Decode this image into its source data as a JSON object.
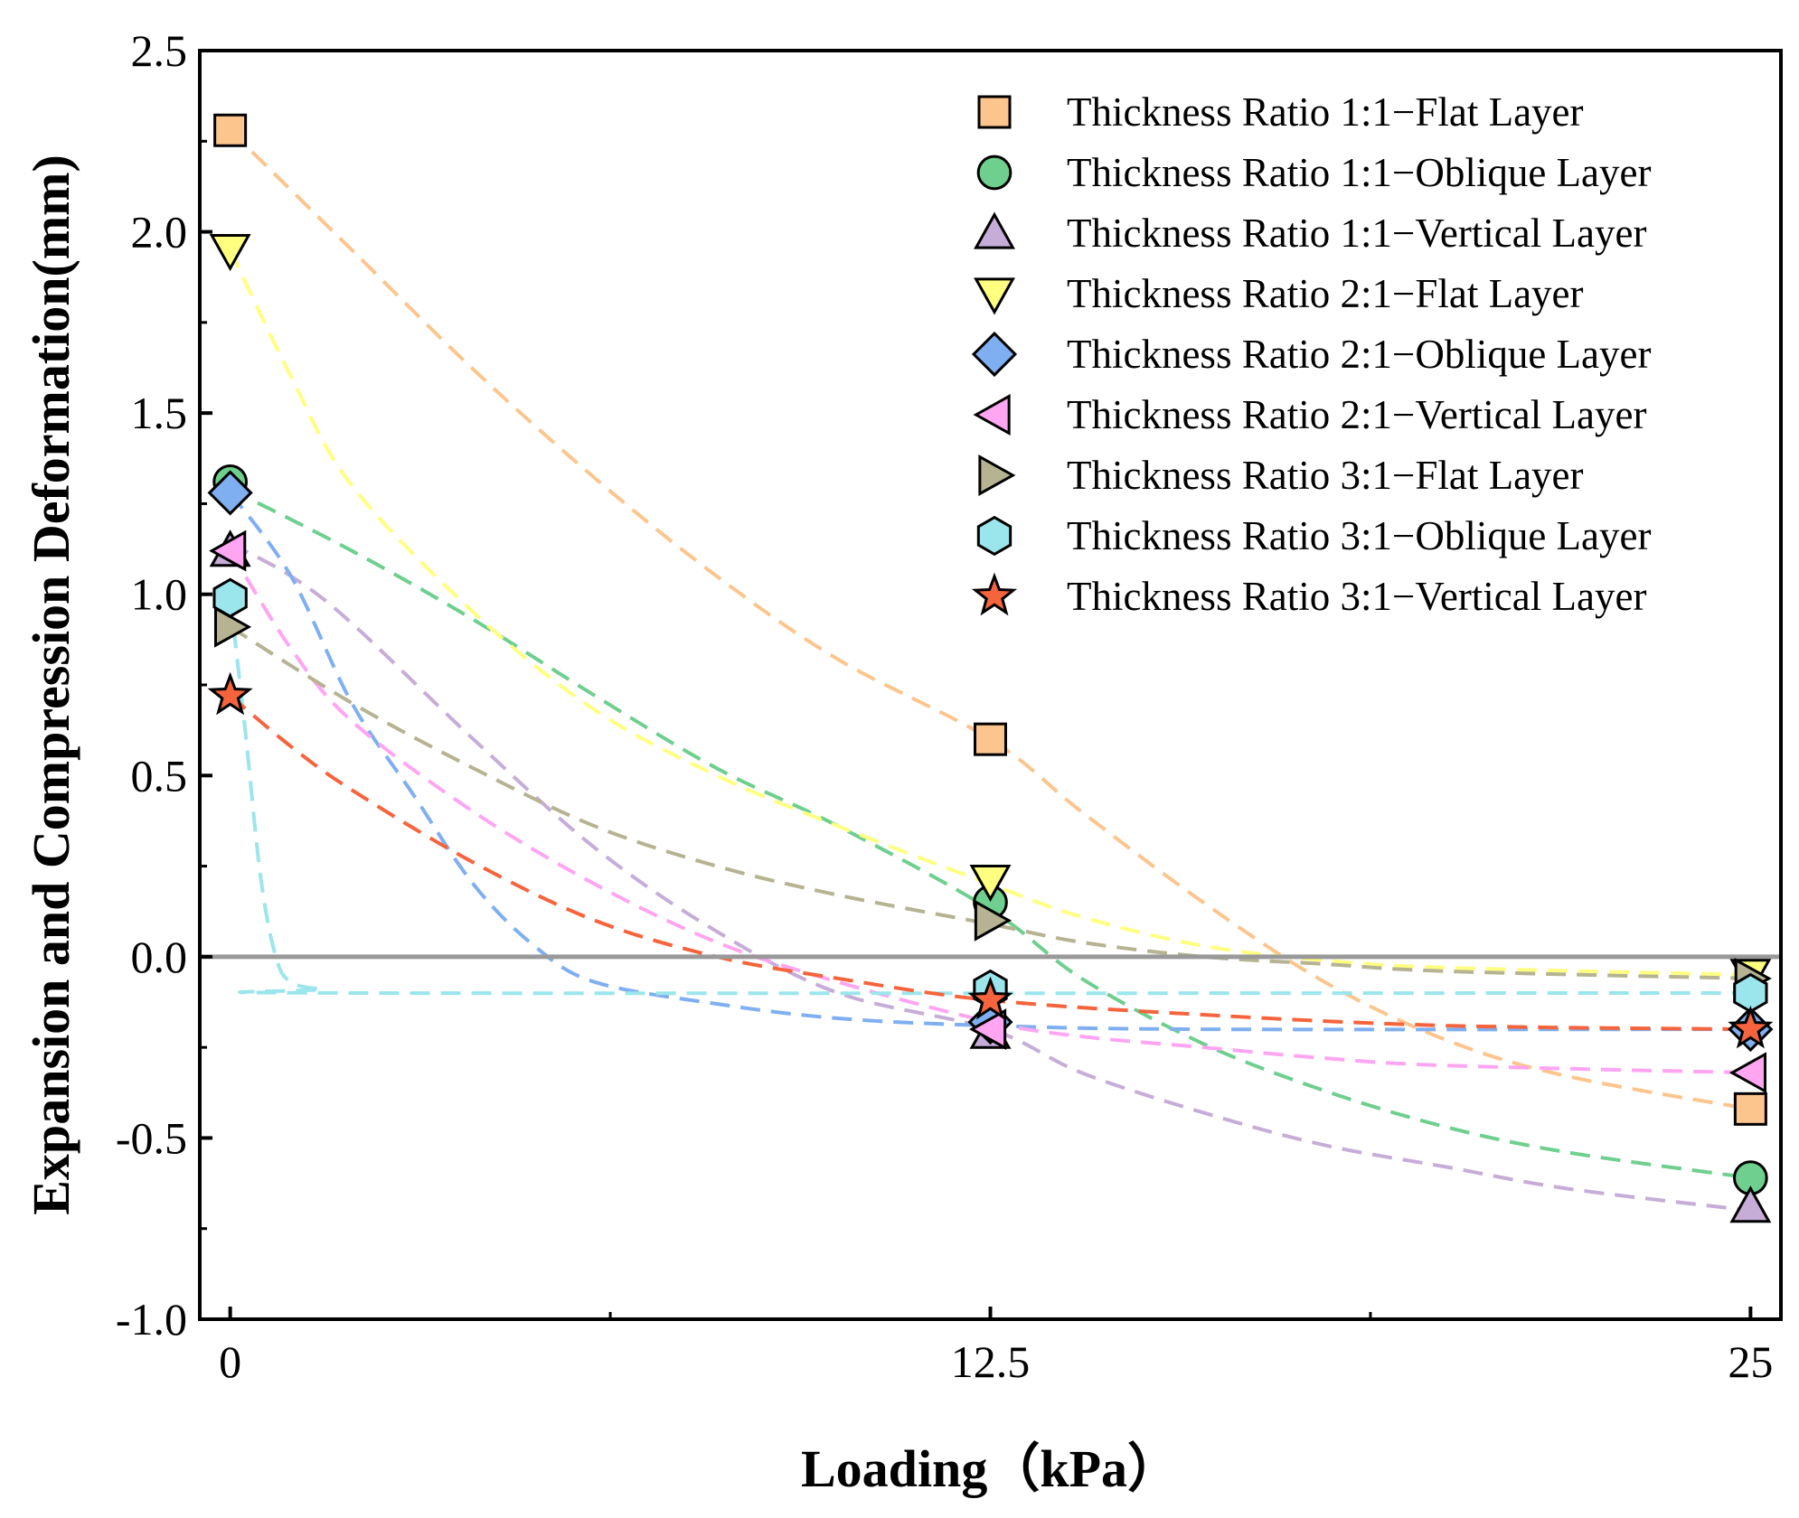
{
  "chart_data": {
    "type": "scatter",
    "title": "",
    "xlabel": "Loading（kPa）",
    "ylabel": "Expansion and Compression Deformation(mm)",
    "xlim": [
      -0.5,
      25.5
    ],
    "ylim": [
      -1.0,
      2.5
    ],
    "xticks": [
      0,
      12.5,
      25
    ],
    "xtick_labels": [
      "0",
      "12.5",
      "25"
    ],
    "yticks": [
      -1.0,
      -0.5,
      0.0,
      0.5,
      1.0,
      1.5,
      2.0,
      2.5
    ],
    "ytick_labels": [
      "-1.0",
      "-0.5",
      "0.0",
      "0.5",
      "1.0",
      "1.5",
      "2.0",
      "2.5"
    ],
    "grid": false,
    "reference_line_y": 0,
    "legend_position": "top-right",
    "x": [
      0,
      12.5,
      25
    ],
    "series": [
      {
        "name": "Thickness Ratio 1:1−Flat Layer",
        "marker": "square",
        "color": "#FCC58E",
        "values": [
          2.28,
          0.6,
          -0.42
        ],
        "fit": [
          [
            0,
            2.28
          ],
          [
            2,
            1.95
          ],
          [
            4,
            1.62
          ],
          [
            6,
            1.32
          ],
          [
            8,
            1.05
          ],
          [
            10,
            0.82
          ],
          [
            12.5,
            0.6
          ],
          [
            14,
            0.4
          ],
          [
            16,
            0.15
          ],
          [
            18,
            -0.07
          ],
          [
            20,
            -0.23
          ],
          [
            22,
            -0.33
          ],
          [
            25,
            -0.42
          ]
        ]
      },
      {
        "name": "Thickness Ratio 1:1−Oblique Layer",
        "marker": "circle",
        "color": "#6ECF8E",
        "values": [
          1.31,
          0.15,
          -0.61
        ],
        "fit": [
          [
            0,
            1.29
          ],
          [
            2,
            1.12
          ],
          [
            4,
            0.93
          ],
          [
            6,
            0.72
          ],
          [
            8,
            0.52
          ],
          [
            10,
            0.36
          ],
          [
            12.5,
            0.13
          ],
          [
            14,
            -0.06
          ],
          [
            16,
            -0.24
          ],
          [
            18,
            -0.37
          ],
          [
            20,
            -0.47
          ],
          [
            22,
            -0.54
          ],
          [
            25,
            -0.61
          ]
        ]
      },
      {
        "name": "Thickness Ratio 1:1−Vertical Layer",
        "marker": "triangle-up",
        "color": "#C6ADD8",
        "values": [
          1.12,
          -0.21,
          -0.69
        ],
        "fit": [
          [
            0,
            1.14
          ],
          [
            1,
            1.05
          ],
          [
            2,
            0.92
          ],
          [
            4,
            0.6
          ],
          [
            6,
            0.3
          ],
          [
            8,
            0.07
          ],
          [
            10,
            -0.1
          ],
          [
            12.5,
            -0.2
          ],
          [
            14,
            -0.32
          ],
          [
            16,
            -0.43
          ],
          [
            18,
            -0.52
          ],
          [
            20,
            -0.58
          ],
          [
            22,
            -0.64
          ],
          [
            25,
            -0.7
          ]
        ]
      },
      {
        "name": "Thickness Ratio 2:1−Flat Layer",
        "marker": "triangle-down",
        "color": "#FFFF80",
        "values": [
          1.95,
          0.21,
          -0.05
        ],
        "fit": [
          [
            0,
            1.95
          ],
          [
            1,
            1.6
          ],
          [
            2,
            1.3
          ],
          [
            4,
            0.95
          ],
          [
            6,
            0.68
          ],
          [
            8,
            0.5
          ],
          [
            10,
            0.36
          ],
          [
            12.5,
            0.2
          ],
          [
            14,
            0.11
          ],
          [
            16,
            0.03
          ],
          [
            18,
            -0.01
          ],
          [
            20,
            -0.03
          ],
          [
            25,
            -0.05
          ]
        ]
      },
      {
        "name": "Thickness Ratio 2:1−Oblique Layer",
        "marker": "diamond",
        "color": "#7FAFF0",
        "values": [
          1.28,
          -0.18,
          -0.2
        ],
        "fit": [
          [
            0,
            1.28
          ],
          [
            1,
            1.05
          ],
          [
            2,
            0.7
          ],
          [
            3,
            0.45
          ],
          [
            4,
            0.2
          ],
          [
            5,
            0.03
          ],
          [
            6,
            -0.07
          ],
          [
            8,
            -0.13
          ],
          [
            10,
            -0.17
          ],
          [
            12.5,
            -0.19
          ],
          [
            16,
            -0.2
          ],
          [
            25,
            -0.2
          ]
        ]
      },
      {
        "name": "Thickness Ratio 2:1−Vertical Layer",
        "marker": "triangle-left",
        "color": "#FFA5F2",
        "values": [
          1.12,
          -0.2,
          -0.32
        ],
        "fit": [
          [
            0,
            1.12
          ],
          [
            1,
            0.85
          ],
          [
            2,
            0.65
          ],
          [
            4,
            0.4
          ],
          [
            6,
            0.2
          ],
          [
            8,
            0.04
          ],
          [
            10,
            -0.07
          ],
          [
            12.5,
            -0.18
          ],
          [
            14,
            -0.22
          ],
          [
            16,
            -0.25
          ],
          [
            18,
            -0.28
          ],
          [
            20,
            -0.3
          ],
          [
            25,
            -0.32
          ]
        ]
      },
      {
        "name": "Thickness Ratio 3:1−Flat Layer",
        "marker": "triangle-right",
        "color": "#B5B391",
        "values": [
          0.91,
          0.1,
          -0.06
        ],
        "fit": [
          [
            0,
            0.91
          ],
          [
            2,
            0.7
          ],
          [
            4,
            0.52
          ],
          [
            6,
            0.36
          ],
          [
            8,
            0.25
          ],
          [
            10,
            0.17
          ],
          [
            12.5,
            0.09
          ],
          [
            14,
            0.04
          ],
          [
            16,
            0.0
          ],
          [
            18,
            -0.02
          ],
          [
            20,
            -0.04
          ],
          [
            25,
            -0.06
          ]
        ]
      },
      {
        "name": "Thickness Ratio 3:1−Oblique Layer",
        "marker": "hexagon",
        "color": "#9BE5EC",
        "values": [
          0.99,
          -0.09,
          -0.1
        ],
        "fit": [
          [
            0,
            0.99
          ],
          [
            0.25,
            0.62
          ],
          [
            0.5,
            0.22
          ],
          [
            0.75,
            0.0
          ],
          [
            1,
            -0.07
          ],
          [
            1.5,
            -0.09
          ],
          [
            2,
            -0.1
          ],
          [
            25,
            -0.1
          ]
        ]
      },
      {
        "name": "Thickness Ratio 3:1−Vertical Layer",
        "marker": "star",
        "color": "#F5643C",
        "values": [
          0.72,
          -0.12,
          -0.2
        ],
        "fit": [
          [
            0,
            0.72
          ],
          [
            1,
            0.58
          ],
          [
            2,
            0.46
          ],
          [
            4,
            0.26
          ],
          [
            6,
            0.1
          ],
          [
            8,
            0.0
          ],
          [
            10,
            -0.06
          ],
          [
            12.5,
            -0.12
          ],
          [
            16,
            -0.16
          ],
          [
            20,
            -0.19
          ],
          [
            25,
            -0.2
          ]
        ]
      }
    ]
  }
}
